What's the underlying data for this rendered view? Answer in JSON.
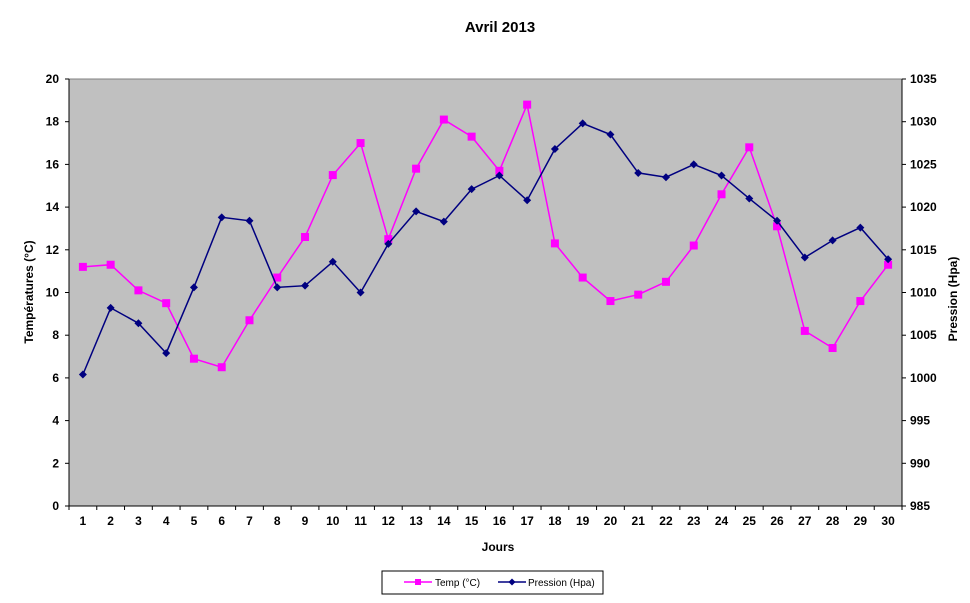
{
  "chart_data": {
    "type": "line",
    "title": "Avril 2013",
    "xlabel": "Jours",
    "ylabel_left": "Températures  (°C)",
    "ylabel_right": "Pression (Hpa)",
    "x": [
      1,
      2,
      3,
      4,
      5,
      6,
      7,
      8,
      9,
      10,
      11,
      12,
      13,
      14,
      15,
      16,
      17,
      18,
      19,
      20,
      21,
      22,
      23,
      24,
      25,
      26,
      27,
      28,
      29,
      30
    ],
    "y_left_lim": [
      0,
      20
    ],
    "y_left_ticks": [
      0,
      2,
      4,
      6,
      8,
      10,
      12,
      14,
      16,
      18,
      20
    ],
    "y_right_lim": [
      985,
      1035
    ],
    "y_right_ticks": [
      985,
      990,
      995,
      1000,
      1005,
      1010,
      1015,
      1020,
      1025,
      1030,
      1035
    ],
    "grid": false,
    "plot_background": "#c0c0c0",
    "legend_position": "bottom",
    "series": [
      {
        "name": "Temp (°C)",
        "axis": "left",
        "color": "#ff00ff",
        "marker": "square",
        "values": [
          11.2,
          11.3,
          10.1,
          9.5,
          6.9,
          6.5,
          8.7,
          10.7,
          12.6,
          15.5,
          17.0,
          12.5,
          15.8,
          18.1,
          17.3,
          15.7,
          18.8,
          12.3,
          10.7,
          9.6,
          9.9,
          10.5,
          12.2,
          14.6,
          16.8,
          13.1,
          8.2,
          7.4,
          9.6,
          11.3
        ]
      },
      {
        "name": "Pression (Hpa)",
        "axis": "right",
        "color": "#000080",
        "marker": "diamond",
        "values": [
          1000.4,
          1008.2,
          1006.4,
          1002.9,
          1010.6,
          1018.8,
          1018.4,
          1010.6,
          1010.8,
          1013.6,
          1010.0,
          1015.7,
          1019.5,
          1018.3,
          1022.1,
          1023.7,
          1020.8,
          1026.8,
          1029.8,
          1028.5,
          1024.0,
          1023.5,
          1025.0,
          1023.7,
          1021.0,
          1018.4,
          1014.1,
          1016.1,
          1017.6,
          1013.9
        ]
      }
    ]
  }
}
